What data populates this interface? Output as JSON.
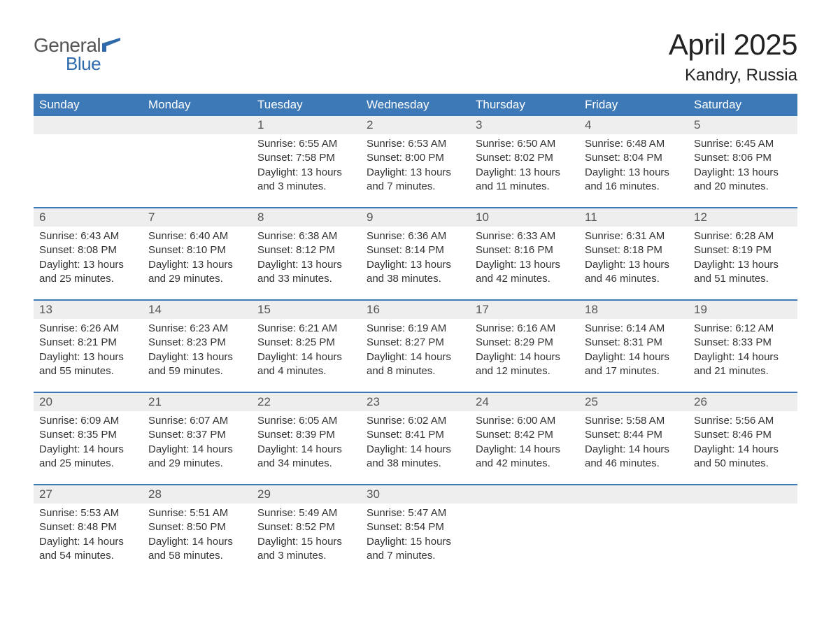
{
  "brand": {
    "general": "General",
    "blue": "Blue",
    "flag_color": "#2f6aab"
  },
  "title": {
    "month": "April 2025",
    "location": "Kandry, Russia"
  },
  "colors": {
    "header_bg": "#3d79b6",
    "header_text": "#ffffff",
    "daynum_bg": "#eeeeee",
    "week_border": "#3d79b6",
    "body_text": "#333333",
    "page_bg": "#ffffff"
  },
  "typography": {
    "month_title_fontsize": 42,
    "location_fontsize": 24,
    "weekday_fontsize": 17,
    "daynum_fontsize": 17,
    "body_fontsize": 15
  },
  "weekdays": [
    "Sunday",
    "Monday",
    "Tuesday",
    "Wednesday",
    "Thursday",
    "Friday",
    "Saturday"
  ],
  "weeks": [
    {
      "nums": [
        "",
        "",
        "1",
        "2",
        "3",
        "4",
        "5"
      ],
      "cells": [
        null,
        null,
        {
          "sunrise": "Sunrise: 6:55 AM",
          "sunset": "Sunset: 7:58 PM",
          "day1": "Daylight: 13 hours",
          "day2": "and 3 minutes."
        },
        {
          "sunrise": "Sunrise: 6:53 AM",
          "sunset": "Sunset: 8:00 PM",
          "day1": "Daylight: 13 hours",
          "day2": "and 7 minutes."
        },
        {
          "sunrise": "Sunrise: 6:50 AM",
          "sunset": "Sunset: 8:02 PM",
          "day1": "Daylight: 13 hours",
          "day2": "and 11 minutes."
        },
        {
          "sunrise": "Sunrise: 6:48 AM",
          "sunset": "Sunset: 8:04 PM",
          "day1": "Daylight: 13 hours",
          "day2": "and 16 minutes."
        },
        {
          "sunrise": "Sunrise: 6:45 AM",
          "sunset": "Sunset: 8:06 PM",
          "day1": "Daylight: 13 hours",
          "day2": "and 20 minutes."
        }
      ]
    },
    {
      "nums": [
        "6",
        "7",
        "8",
        "9",
        "10",
        "11",
        "12"
      ],
      "cells": [
        {
          "sunrise": "Sunrise: 6:43 AM",
          "sunset": "Sunset: 8:08 PM",
          "day1": "Daylight: 13 hours",
          "day2": "and 25 minutes."
        },
        {
          "sunrise": "Sunrise: 6:40 AM",
          "sunset": "Sunset: 8:10 PM",
          "day1": "Daylight: 13 hours",
          "day2": "and 29 minutes."
        },
        {
          "sunrise": "Sunrise: 6:38 AM",
          "sunset": "Sunset: 8:12 PM",
          "day1": "Daylight: 13 hours",
          "day2": "and 33 minutes."
        },
        {
          "sunrise": "Sunrise: 6:36 AM",
          "sunset": "Sunset: 8:14 PM",
          "day1": "Daylight: 13 hours",
          "day2": "and 38 minutes."
        },
        {
          "sunrise": "Sunrise: 6:33 AM",
          "sunset": "Sunset: 8:16 PM",
          "day1": "Daylight: 13 hours",
          "day2": "and 42 minutes."
        },
        {
          "sunrise": "Sunrise: 6:31 AM",
          "sunset": "Sunset: 8:18 PM",
          "day1": "Daylight: 13 hours",
          "day2": "and 46 minutes."
        },
        {
          "sunrise": "Sunrise: 6:28 AM",
          "sunset": "Sunset: 8:19 PM",
          "day1": "Daylight: 13 hours",
          "day2": "and 51 minutes."
        }
      ]
    },
    {
      "nums": [
        "13",
        "14",
        "15",
        "16",
        "17",
        "18",
        "19"
      ],
      "cells": [
        {
          "sunrise": "Sunrise: 6:26 AM",
          "sunset": "Sunset: 8:21 PM",
          "day1": "Daylight: 13 hours",
          "day2": "and 55 minutes."
        },
        {
          "sunrise": "Sunrise: 6:23 AM",
          "sunset": "Sunset: 8:23 PM",
          "day1": "Daylight: 13 hours",
          "day2": "and 59 minutes."
        },
        {
          "sunrise": "Sunrise: 6:21 AM",
          "sunset": "Sunset: 8:25 PM",
          "day1": "Daylight: 14 hours",
          "day2": "and 4 minutes."
        },
        {
          "sunrise": "Sunrise: 6:19 AM",
          "sunset": "Sunset: 8:27 PM",
          "day1": "Daylight: 14 hours",
          "day2": "and 8 minutes."
        },
        {
          "sunrise": "Sunrise: 6:16 AM",
          "sunset": "Sunset: 8:29 PM",
          "day1": "Daylight: 14 hours",
          "day2": "and 12 minutes."
        },
        {
          "sunrise": "Sunrise: 6:14 AM",
          "sunset": "Sunset: 8:31 PM",
          "day1": "Daylight: 14 hours",
          "day2": "and 17 minutes."
        },
        {
          "sunrise": "Sunrise: 6:12 AM",
          "sunset": "Sunset: 8:33 PM",
          "day1": "Daylight: 14 hours",
          "day2": "and 21 minutes."
        }
      ]
    },
    {
      "nums": [
        "20",
        "21",
        "22",
        "23",
        "24",
        "25",
        "26"
      ],
      "cells": [
        {
          "sunrise": "Sunrise: 6:09 AM",
          "sunset": "Sunset: 8:35 PM",
          "day1": "Daylight: 14 hours",
          "day2": "and 25 minutes."
        },
        {
          "sunrise": "Sunrise: 6:07 AM",
          "sunset": "Sunset: 8:37 PM",
          "day1": "Daylight: 14 hours",
          "day2": "and 29 minutes."
        },
        {
          "sunrise": "Sunrise: 6:05 AM",
          "sunset": "Sunset: 8:39 PM",
          "day1": "Daylight: 14 hours",
          "day2": "and 34 minutes."
        },
        {
          "sunrise": "Sunrise: 6:02 AM",
          "sunset": "Sunset: 8:41 PM",
          "day1": "Daylight: 14 hours",
          "day2": "and 38 minutes."
        },
        {
          "sunrise": "Sunrise: 6:00 AM",
          "sunset": "Sunset: 8:42 PM",
          "day1": "Daylight: 14 hours",
          "day2": "and 42 minutes."
        },
        {
          "sunrise": "Sunrise: 5:58 AM",
          "sunset": "Sunset: 8:44 PM",
          "day1": "Daylight: 14 hours",
          "day2": "and 46 minutes."
        },
        {
          "sunrise": "Sunrise: 5:56 AM",
          "sunset": "Sunset: 8:46 PM",
          "day1": "Daylight: 14 hours",
          "day2": "and 50 minutes."
        }
      ]
    },
    {
      "nums": [
        "27",
        "28",
        "29",
        "30",
        "",
        "",
        ""
      ],
      "cells": [
        {
          "sunrise": "Sunrise: 5:53 AM",
          "sunset": "Sunset: 8:48 PM",
          "day1": "Daylight: 14 hours",
          "day2": "and 54 minutes."
        },
        {
          "sunrise": "Sunrise: 5:51 AM",
          "sunset": "Sunset: 8:50 PM",
          "day1": "Daylight: 14 hours",
          "day2": "and 58 minutes."
        },
        {
          "sunrise": "Sunrise: 5:49 AM",
          "sunset": "Sunset: 8:52 PM",
          "day1": "Daylight: 15 hours",
          "day2": "and 3 minutes."
        },
        {
          "sunrise": "Sunrise: 5:47 AM",
          "sunset": "Sunset: 8:54 PM",
          "day1": "Daylight: 15 hours",
          "day2": "and 7 minutes."
        },
        null,
        null,
        null
      ]
    }
  ]
}
